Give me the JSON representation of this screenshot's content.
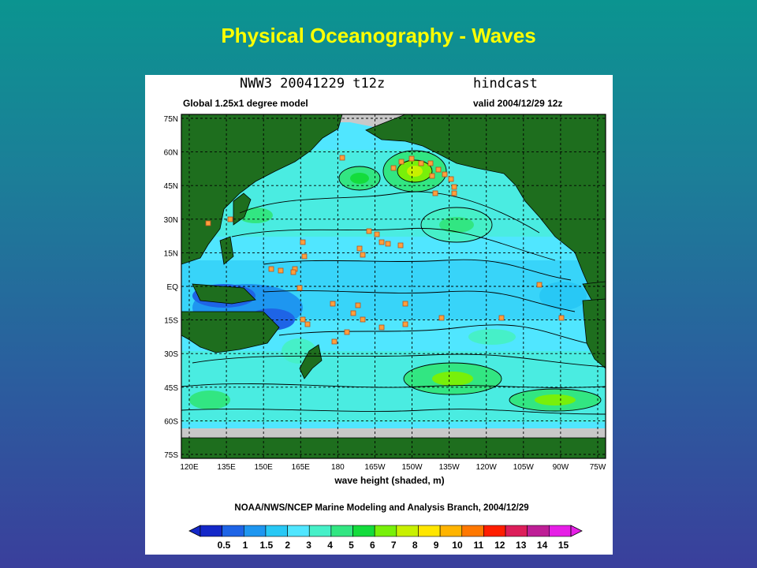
{
  "slide": {
    "title": "Physical Oceanography - Waves"
  },
  "map": {
    "model_run": "NWW3 20041229 t12z",
    "run_type": "hindcast",
    "model_desc": "Global 1.25x1 degree model",
    "valid_text": "valid 2004/12/29  12z",
    "lat_labels": [
      "75N",
      "60N",
      "45N",
      "30N",
      "15N",
      "EQ",
      "15S",
      "30S",
      "45S",
      "60S",
      "75S"
    ],
    "lon_labels": [
      "120E",
      "135E",
      "150E",
      "165E",
      "180",
      "165W",
      "150W",
      "135W",
      "120W",
      "105W",
      "90W",
      "75W"
    ],
    "axis_title": "wave height (shaded, m)",
    "credit": "NOAA/NWS/NCEP Marine Modeling and Analysis Branch, 2004/12/29",
    "colorbar_labels": [
      "0.5",
      "1",
      "1.5",
      "2",
      "3",
      "4",
      "5",
      "6",
      "7",
      "8",
      "9",
      "10",
      "11",
      "12",
      "13",
      "14",
      "15"
    ],
    "colorbar_colors": [
      "#1428c8",
      "#1e64e6",
      "#1e96f0",
      "#28c8f5",
      "#50e6ff",
      "#46f0c8",
      "#32e682",
      "#14dc3c",
      "#78f00a",
      "#c8f000",
      "#ffe600",
      "#ffb400",
      "#ff7800",
      "#ff1e00",
      "#dc1e5a",
      "#be1e96",
      "#e61ee6"
    ],
    "colors": {
      "land": "#1e6e1e",
      "ice": "#c8c8c8",
      "ocean_base": "#50e6ff",
      "buoy": "#ffa03c"
    }
  }
}
